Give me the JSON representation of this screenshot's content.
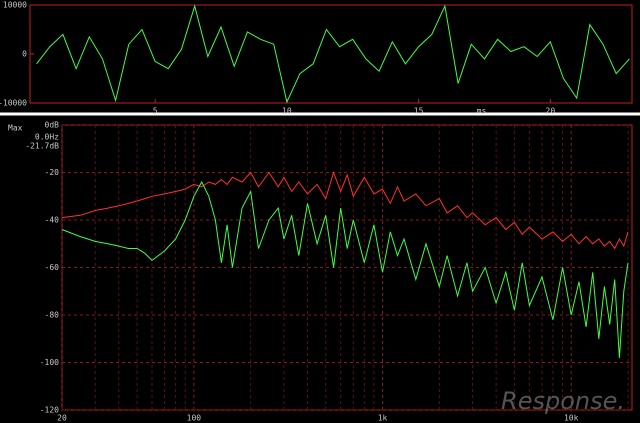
{
  "chart_data": [
    {
      "type": "line",
      "x_label": "ms",
      "x": [
        0.5,
        1,
        1.5,
        2,
        2.5,
        3,
        3.5,
        4,
        4.5,
        5,
        5.5,
        6,
        6.5,
        7,
        7.5,
        8,
        8.5,
        9,
        9.5,
        10,
        10.5,
        11,
        11.5,
        12,
        12.5,
        13,
        13.5,
        14,
        14.5,
        15,
        15.5,
        16,
        16.5,
        17,
        17.5,
        18,
        18.5,
        19,
        19.5,
        20,
        20.5,
        21,
        21.5,
        22,
        22.5,
        23
      ],
      "series": [
        {
          "color": "#40ff40",
          "values": [
            -2000,
            1500,
            4000,
            -3000,
            3500,
            -1000,
            -9500,
            2000,
            5000,
            -1500,
            -3000,
            1000,
            9800,
            -500,
            5500,
            -2500,
            4500,
            3000,
            2000,
            -9800,
            -4000,
            -2000,
            5000,
            1500,
            3000,
            -1000,
            -3500,
            2500,
            -2000,
            1500,
            4000,
            9800,
            -6000,
            2000,
            -1000,
            3000,
            500,
            1500,
            -500,
            2500,
            -5000,
            -9000,
            6000,
            2000,
            -4000,
            -1000
          ]
        }
      ],
      "xlim": [
        0.25,
        23.1
      ],
      "xticks": [
        5,
        10,
        15,
        20
      ],
      "ylim": [
        -10000,
        10000
      ],
      "yticks": [
        -10000,
        0,
        10000
      ],
      "grid": false
    },
    {
      "type": "line",
      "xscale": "log",
      "annotations": [
        "Max",
        "0.0Hz",
        "-21.7dB"
      ],
      "watermark": "Response.",
      "x": [
        20,
        25,
        30,
        35,
        40,
        45,
        50,
        55,
        60,
        70,
        80,
        90,
        100,
        110,
        120,
        130,
        140,
        150,
        160,
        180,
        200,
        220,
        250,
        280,
        300,
        330,
        360,
        400,
        450,
        500,
        550,
        600,
        650,
        700,
        800,
        900,
        1000,
        1100,
        1200,
        1300,
        1500,
        1700,
        2000,
        2200,
        2500,
        2800,
        3000,
        3500,
        4000,
        4500,
        5000,
        5500,
        6000,
        7000,
        8000,
        9000,
        10000,
        11000,
        12000,
        13000,
        14000,
        15000,
        16000,
        17000,
        18000,
        19000,
        20000
      ],
      "series": [
        {
          "color": "#ff3030",
          "values": [
            -39,
            -38,
            -36,
            -35,
            -34,
            -33,
            -32,
            -31,
            -30,
            -29,
            -28,
            -27,
            -25,
            -26,
            -24,
            -25,
            -23,
            -25,
            -22,
            -24,
            -20,
            -26,
            -20,
            -26,
            -22,
            -28,
            -24,
            -29,
            -25,
            -31,
            -20,
            -28,
            -21,
            -30,
            -22,
            -29,
            -27,
            -33,
            -26,
            -32,
            -29,
            -34,
            -31,
            -37,
            -34,
            -39,
            -37,
            -42,
            -39,
            -44,
            -41,
            -46,
            -43,
            -48,
            -45,
            -49,
            -46,
            -50,
            -47,
            -50,
            -48,
            -51,
            -49,
            -52,
            -48,
            -51,
            -45
          ]
        },
        {
          "color": "#40ff40",
          "values": [
            -44,
            -47,
            -49,
            -50,
            -51,
            -52,
            -52,
            -54,
            -57,
            -53,
            -48,
            -40,
            -30,
            -24,
            -30,
            -40,
            -58,
            -42,
            -60,
            -35,
            -28,
            -52,
            -40,
            -35,
            -48,
            -38,
            -55,
            -33,
            -50,
            -38,
            -60,
            -35,
            -52,
            -40,
            -58,
            -42,
            -62,
            -45,
            -55,
            -48,
            -65,
            -50,
            -68,
            -55,
            -72,
            -58,
            -70,
            -60,
            -75,
            -62,
            -78,
            -58,
            -76,
            -64,
            -82,
            -60,
            -80,
            -66,
            -85,
            -62,
            -90,
            -68,
            -84,
            -65,
            -98,
            -70,
            -58
          ]
        }
      ],
      "xlim": [
        20,
        21000
      ],
      "xticks": [
        20,
        100,
        {
          "value": 1000,
          "label": "1k"
        },
        {
          "value": 10000,
          "label": "10k"
        }
      ],
      "ylim": [
        -120,
        0
      ],
      "yticks": [
        {
          "value": 0,
          "label": "0dB"
        },
        -20,
        -40,
        -60,
        -80,
        -100,
        -120
      ],
      "grid": true
    }
  ]
}
